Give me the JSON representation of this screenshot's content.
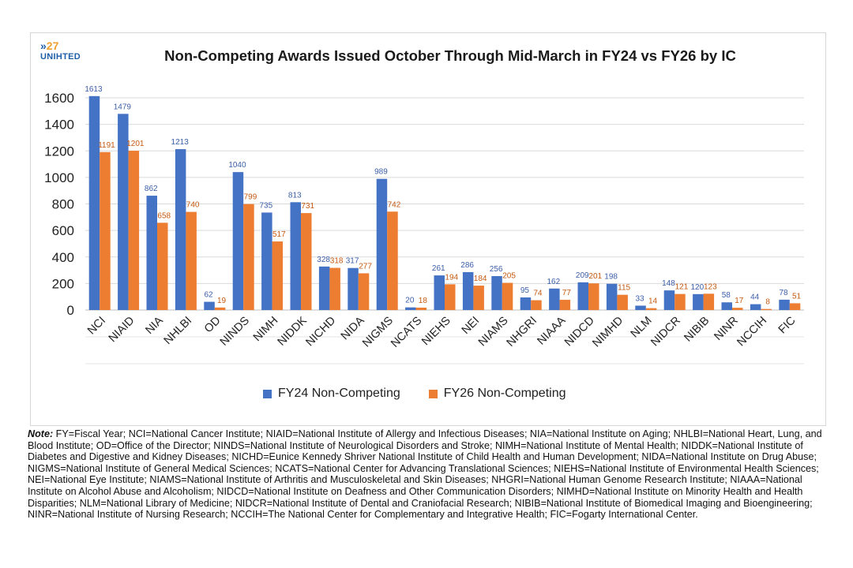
{
  "logo": {
    "number": "27",
    "text": "UNIHTED"
  },
  "title": "Non-Competing Awards Issued October Through Mid-March in FY24 vs FY26 by IC",
  "colors": {
    "fy24": "#4472c4",
    "fy26": "#ed7d31",
    "grid": "#d9d9d9",
    "value_fy24": "#3b5fa8",
    "value_fy26": "#c55a11"
  },
  "chart_data": {
    "type": "bar",
    "title": "Non-Competing Awards Issued October Through Mid-March in FY24 vs FY26 by IC",
    "categories": [
      "NCI",
      "NIAID",
      "NIA",
      "NHLBI",
      "OD",
      "NINDS",
      "NIMH",
      "NIDDK",
      "NICHD",
      "NIDA",
      "NIGMS",
      "NCATS",
      "NIEHS",
      "NEI",
      "NIAMS",
      "NHGRI",
      "NIAAA",
      "NIDCD",
      "NIMHD",
      "NLM",
      "NIDCR",
      "NIBIB",
      "NINR",
      "NCCIH",
      "FIC"
    ],
    "series": [
      {
        "name": "FY24 Non-Competing",
        "values": [
          1613,
          1479,
          862,
          1213,
          62,
          1040,
          735,
          813,
          328,
          317,
          989,
          20,
          261,
          286,
          256,
          95,
          162,
          209,
          198,
          33,
          148,
          120,
          58,
          44,
          78
        ]
      },
      {
        "name": "FY26 Non-Competing",
        "values": [
          1191,
          1201,
          658,
          740,
          19,
          799,
          517,
          731,
          318,
          277,
          742,
          18,
          194,
          184,
          205,
          74,
          77,
          201,
          115,
          14,
          121,
          123,
          17,
          8,
          51
        ]
      }
    ],
    "ylim": [
      0,
      1600
    ],
    "yticks": [
      0,
      200,
      400,
      600,
      800,
      1000,
      1200,
      1400,
      1600
    ],
    "grid": true,
    "legend_position": "bottom"
  },
  "legend": [
    {
      "label": "FY24 Non-Competing",
      "color": "#4472c4"
    },
    {
      "label": "FY26 Non-Competing",
      "color": "#ed7d31"
    }
  ],
  "note": {
    "label": "Note:",
    "text": " FY=Fiscal Year; NCI=National Cancer Institute; NIAID=National Institute of Allergy and Infectious Diseases; NIA=National Institute on Aging; NHLBI=National Heart, Lung, and Blood Institute; OD=Office of the Director; NINDS=National Institute of Neurological Disorders and Stroke; NIMH=National Institute of Mental Health; NIDDK=National Institute of Diabetes and Digestive and Kidney Diseases; NICHD=Eunice Kennedy Shriver National Institute of Child Health and Human Development; NIDA=National Institute on Drug Abuse; NIGMS=National Institute of General Medical Sciences; NCATS=National Center for Advancing Translational Sciences; NIEHS=National Institute of Environmental Health Sciences; NEI=National Eye Institute; NIAMS=National Institute of Arthritis and Musculoskeletal and Skin Diseases; NHGRI=National Human Genome Research Institute; NIAAA=National Institute on Alcohol Abuse and Alcoholism; NIDCD=National Institute on Deafness and Other Communication Disorders; NIMHD=National Institute on Minority Health and Health Disparities; NLM=National Library of Medicine; NIDCR=National Institute of Dental and Craniofacial Research; NIBIB=National Institute of Biomedical Imaging and Bioengineering; NINR=National Institute of Nursing Research; NCCIH=The National Center for Complementary and Integrative Health; FIC=Fogarty International Center."
  }
}
